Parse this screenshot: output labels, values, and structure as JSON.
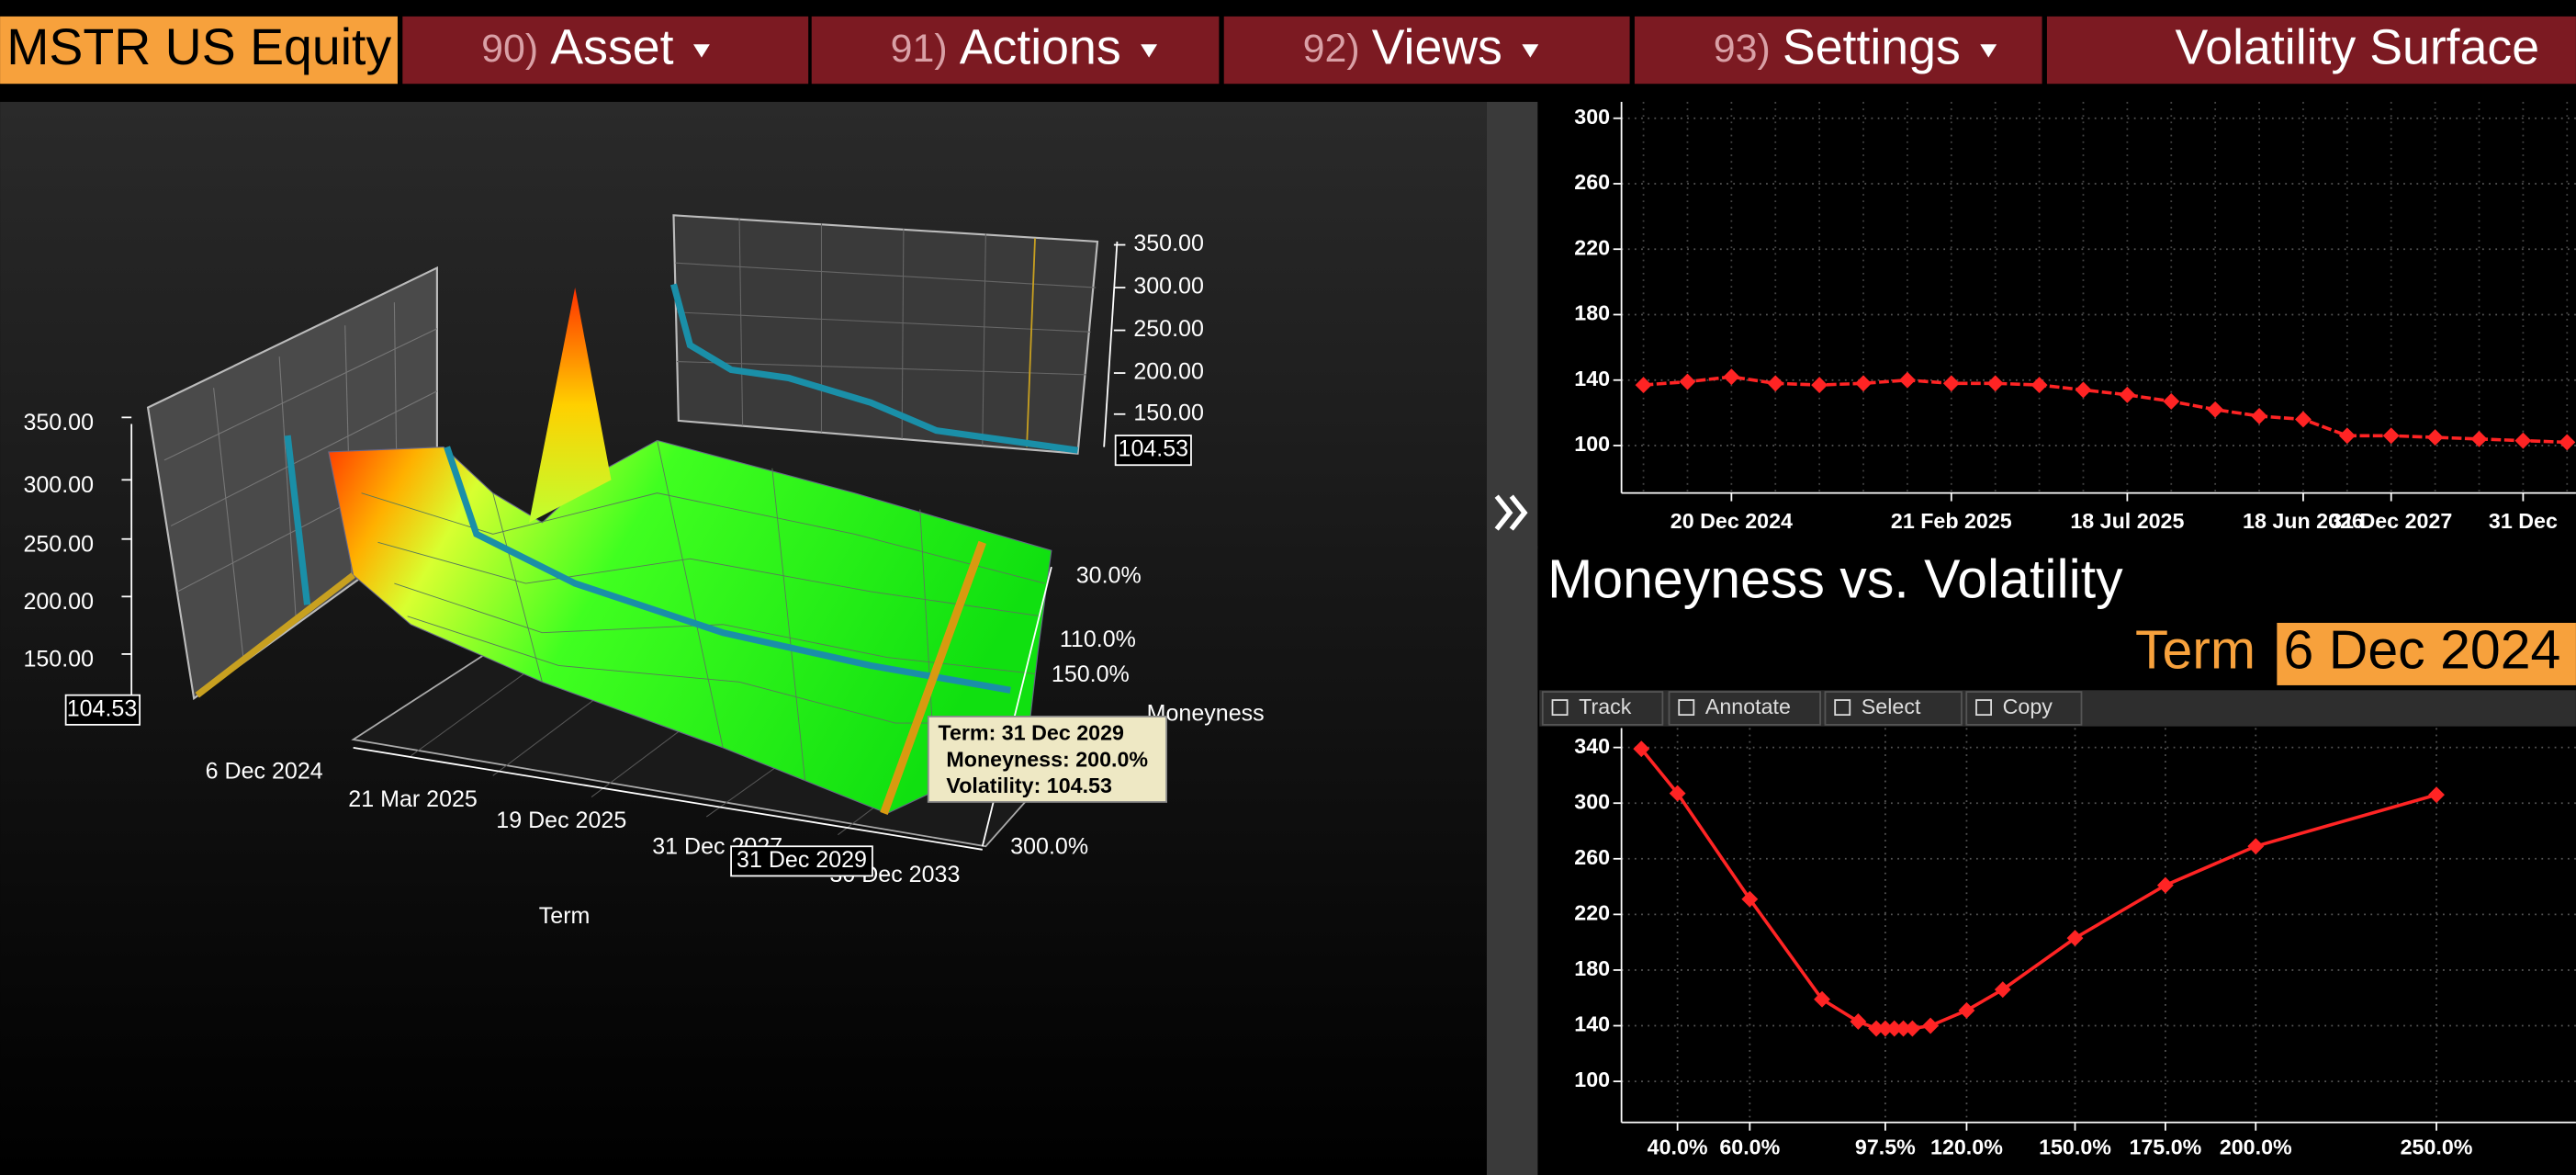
{
  "toolbar": {
    "ticker": "MSTR US Equity",
    "menus": [
      {
        "num": "90)",
        "label": "Asset"
      },
      {
        "num": "91)",
        "label": "Actions"
      },
      {
        "num": "92)",
        "label": "Views"
      },
      {
        "num": "93)",
        "label": "Settings"
      }
    ],
    "title": "Volatility Surface"
  },
  "surface": {
    "z_labels": [
      "350.00",
      "300.00",
      "250.00",
      "200.00",
      "150.00"
    ],
    "z_current": "104.53",
    "term_labels": [
      "6 Dec 2024",
      "21 Mar 2025",
      "19 Dec 2025",
      "31 Dec 2027",
      "30 Dec 2033"
    ],
    "term_axis": "Term",
    "moneyness_labels": [
      "30.0%",
      "110.0%",
      "150.0%",
      "300.0%"
    ],
    "moneyness_axis": "Moneyness",
    "term_marker": "31 Dec 2029",
    "inset_labels": [
      "350.00",
      "300.00",
      "250.00",
      "200.00",
      "150.00"
    ],
    "inset_current": "104.53",
    "tooltip": {
      "term": "Term: 31 Dec 2029",
      "moneyness": "Moneyness: 200.0%",
      "volatility": "Volatility: 104.53"
    }
  },
  "moneyness_panel": {
    "title": "Moneyness vs. Volatility",
    "term_label": "Term",
    "term_value": "6 Dec 2024",
    "tools": [
      "Track",
      "Annotate",
      "Select",
      "Copy"
    ]
  },
  "chart_data": [
    {
      "type": "line",
      "categories": [
        null,
        null,
        "20 Dec 2024",
        null,
        null,
        null,
        null,
        "21 Feb 2025",
        null,
        null,
        null,
        "18 Jul 2025",
        null,
        null,
        null,
        "18 Jun 2026",
        null,
        "31 Dec 2027",
        null,
        null,
        "31 Dec",
        null
      ],
      "values": [
        137,
        139,
        142,
        138,
        137,
        138,
        140,
        138,
        138,
        137,
        134,
        131,
        127,
        122,
        118,
        116,
        106,
        106,
        105,
        104,
        103,
        102
      ],
      "color": "#ff2424",
      "ylim": [
        71,
        310
      ],
      "yticks": [
        100,
        140,
        180,
        220,
        260,
        300
      ],
      "grid": true
    },
    {
      "type": "scatter-line",
      "x": [
        30,
        40,
        60,
        80,
        90,
        95,
        97.5,
        100,
        102.5,
        105,
        110,
        120,
        130,
        150,
        175,
        200,
        250
      ],
      "values": [
        339,
        307,
        231,
        159,
        143,
        138,
        138,
        138,
        138,
        138,
        140,
        151,
        166,
        203,
        241,
        269,
        306
      ],
      "color": "#ff2424",
      "xlim": [
        24.5,
        288.6
      ],
      "xticks": [
        {
          "value": 40,
          "label": "40.0%"
        },
        {
          "value": 60,
          "label": "60.0%"
        },
        {
          "value": 97.5,
          "label": "97.5%"
        },
        {
          "value": 120,
          "label": "120.0%"
        },
        {
          "value": 150,
          "label": "150.0%"
        },
        {
          "value": 175,
          "label": "175.0%"
        },
        {
          "value": 200,
          "label": "200.0%"
        },
        {
          "value": 250,
          "label": "250.0%"
        }
      ],
      "ylim": [
        70.5,
        354
      ],
      "yticks": [
        100,
        140,
        180,
        220,
        260,
        300,
        340
      ],
      "grid": true
    }
  ]
}
